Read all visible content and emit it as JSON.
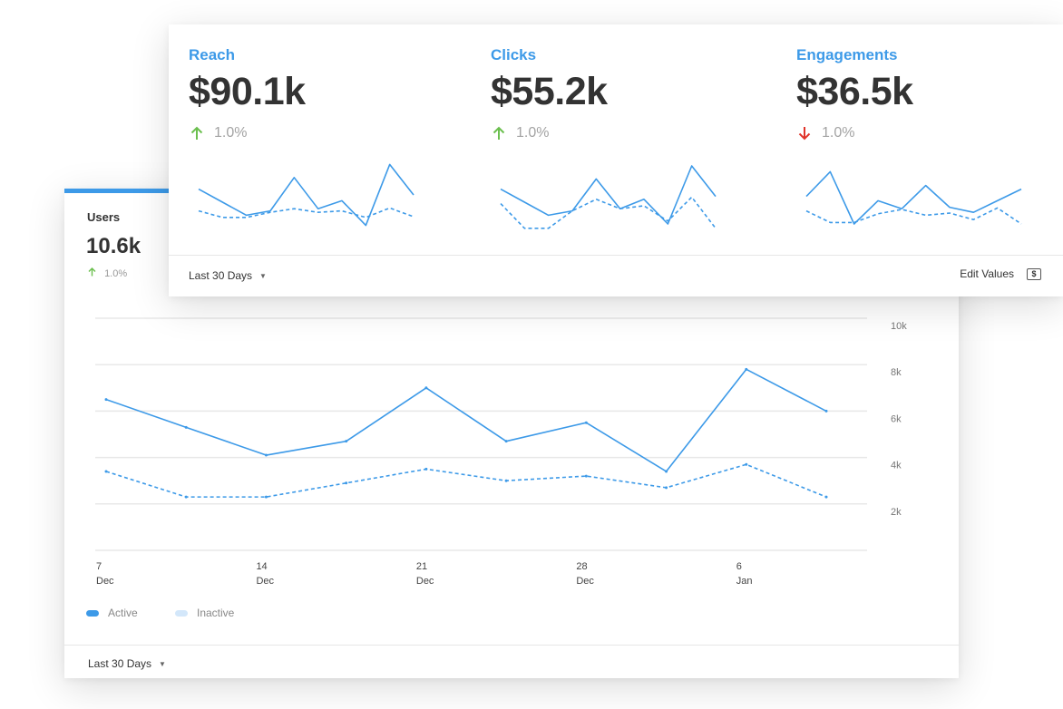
{
  "users_card": {
    "title": "Users",
    "value": "10.6k",
    "change": "1.0%",
    "change_direction": "up",
    "range_label": "Last 30 Days",
    "legend": [
      {
        "label": "Active",
        "color": "#3d9ae8"
      },
      {
        "label": "Inactive",
        "color": "#d3e7fa"
      }
    ]
  },
  "kpi_card": {
    "range_label": "Last 30 Days",
    "edit_label": "Edit Values",
    "edit_icon_text": "$",
    "metrics": [
      {
        "label": "Reach",
        "value": "$90.1k",
        "change": "1.0%",
        "direction": "up"
      },
      {
        "label": "Clicks",
        "value": "$55.2k",
        "change": "1.0%",
        "direction": "up"
      },
      {
        "label": "Engagements",
        "value": "$36.5k",
        "change": "1.0%",
        "direction": "down"
      }
    ]
  },
  "colors": {
    "accent": "#3d9ae8",
    "up": "#6bbf4e",
    "down": "#e0332a"
  },
  "chart_data": [
    {
      "type": "line",
      "x": [
        "7 Dec",
        "10 Dec",
        "14 Dec",
        "18 Dec",
        "21 Dec",
        "25 Dec",
        "28 Dec",
        "2 Jan",
        "6 Jan",
        "9 Jan"
      ],
      "x_tick_labels": [
        {
          "line1": "7",
          "line2": "Dec",
          "index": 0
        },
        {
          "line1": "14",
          "line2": "Dec",
          "index": 2
        },
        {
          "line1": "21",
          "line2": "Dec",
          "index": 4
        },
        {
          "line1": "28",
          "line2": "Dec",
          "index": 6
        },
        {
          "line1": "6",
          "line2": "Jan",
          "index": 8
        }
      ],
      "y_ticks": [
        "2k",
        "4k",
        "6k",
        "8k",
        "10k"
      ],
      "y_tick_values": [
        2000,
        4000,
        6000,
        8000,
        10000
      ],
      "ylim": [
        0,
        10000
      ],
      "grid": true,
      "series": [
        {
          "name": "Active",
          "style": "solid",
          "values": [
            6500,
            5300,
            4100,
            4700,
            7000,
            4700,
            5500,
            3400,
            7800,
            6000
          ]
        },
        {
          "name": "Inactive",
          "style": "dashed",
          "values": [
            3400,
            2300,
            2300,
            2900,
            3500,
            3000,
            3200,
            2700,
            3700,
            2300
          ]
        }
      ]
    },
    {
      "type": "line",
      "title": "Reach",
      "series": [
        {
          "style": "solid",
          "values": [
            58,
            40,
            22,
            28,
            74,
            31,
            42,
            8,
            92,
            50
          ]
        },
        {
          "style": "dashed",
          "values": [
            28,
            19,
            19,
            26,
            31,
            26,
            28,
            19,
            32,
            20
          ]
        }
      ]
    },
    {
      "type": "line",
      "title": "Clicks",
      "series": [
        {
          "style": "solid",
          "values": [
            58,
            40,
            22,
            28,
            72,
            31,
            44,
            10,
            90,
            48
          ]
        },
        {
          "style": "dashed",
          "values": [
            38,
            4,
            4,
            28,
            44,
            31,
            35,
            14,
            47,
            4
          ]
        }
      ]
    },
    {
      "type": "line",
      "title": "Engagements",
      "series": [
        {
          "style": "solid",
          "values": [
            48,
            82,
            10,
            42,
            31,
            63,
            33,
            26,
            42,
            58
          ]
        },
        {
          "style": "dashed",
          "values": [
            28,
            12,
            12,
            24,
            30,
            22,
            25,
            16,
            32,
            10
          ]
        }
      ]
    }
  ]
}
